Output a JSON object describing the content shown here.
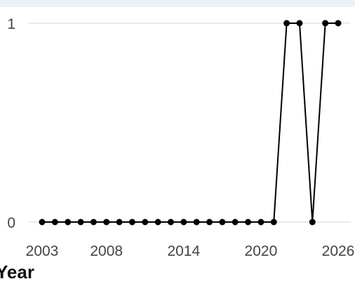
{
  "chart_data": {
    "type": "line",
    "xlabel": "Year",
    "ylabel": "",
    "xlim": [
      2003,
      2026
    ],
    "ylim": [
      0,
      1
    ],
    "x_ticks": [
      2003,
      2008,
      2014,
      2020,
      2026
    ],
    "y_ticks": [
      0,
      1
    ],
    "grid": "horizontal",
    "series": [
      {
        "color": "#000000",
        "points": [
          {
            "x": 2003,
            "y": 0
          },
          {
            "x": 2004,
            "y": 0
          },
          {
            "x": 2005,
            "y": 0
          },
          {
            "x": 2006,
            "y": 0
          },
          {
            "x": 2007,
            "y": 0
          },
          {
            "x": 2008,
            "y": 0
          },
          {
            "x": 2009,
            "y": 0
          },
          {
            "x": 2010,
            "y": 0
          },
          {
            "x": 2011,
            "y": 0
          },
          {
            "x": 2012,
            "y": 0
          },
          {
            "x": 2013,
            "y": 0
          },
          {
            "x": 2014,
            "y": 0
          },
          {
            "x": 2015,
            "y": 0
          },
          {
            "x": 2016,
            "y": 0
          },
          {
            "x": 2017,
            "y": 0
          },
          {
            "x": 2018,
            "y": 0
          },
          {
            "x": 2019,
            "y": 0
          },
          {
            "x": 2020,
            "y": 0
          },
          {
            "x": 2021,
            "y": 0
          },
          {
            "x": 2022,
            "y": 1
          },
          {
            "x": 2023,
            "y": 1
          },
          {
            "x": 2024,
            "y": 0
          },
          {
            "x": 2025,
            "y": 1
          },
          {
            "x": 2026,
            "y": 1
          }
        ]
      }
    ]
  }
}
